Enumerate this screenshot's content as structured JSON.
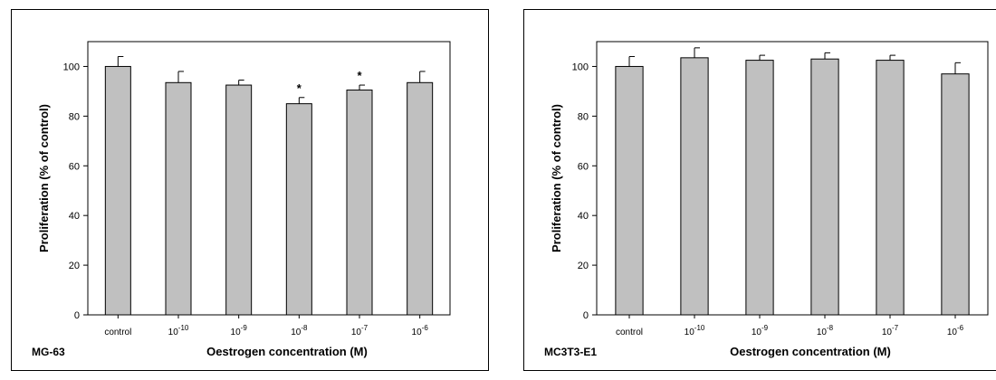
{
  "chart_data": [
    {
      "type": "bar",
      "panel_label": "MG-63",
      "xlabel": "Oestrogen concentration (M)",
      "ylabel": "Proliferation (% of control)",
      "categories": [
        {
          "base": "control",
          "exp": ""
        },
        {
          "base": "10",
          "exp": "-10"
        },
        {
          "base": "10",
          "exp": "-9"
        },
        {
          "base": "10",
          "exp": "-8"
        },
        {
          "base": "10",
          "exp": "-7"
        },
        {
          "base": "10",
          "exp": "-6"
        }
      ],
      "values": [
        100,
        93.5,
        92.5,
        85,
        90.5,
        93.5
      ],
      "errors": [
        4,
        4.5,
        2,
        2.5,
        2,
        4.5
      ],
      "significance": [
        "",
        "",
        "",
        "*",
        "*",
        ""
      ],
      "ylim": [
        0,
        110
      ],
      "yticks": [
        0,
        20,
        40,
        60,
        80,
        100
      ],
      "bar_color": "#c0c0c0"
    },
    {
      "type": "bar",
      "panel_label": "MC3T3-E1",
      "xlabel": "Oestrogen concentration (M)",
      "ylabel": "Proliferation (% of control)",
      "categories": [
        {
          "base": "control",
          "exp": ""
        },
        {
          "base": "10",
          "exp": "-10"
        },
        {
          "base": "10",
          "exp": "-9"
        },
        {
          "base": "10",
          "exp": "-8"
        },
        {
          "base": "10",
          "exp": "-7"
        },
        {
          "base": "10",
          "exp": "-6"
        }
      ],
      "values": [
        100,
        103.5,
        102.5,
        103,
        102.5,
        97
      ],
      "errors": [
        4,
        4,
        2,
        2.5,
        2,
        4.5
      ],
      "significance": [
        "",
        "",
        "",
        "",
        "",
        ""
      ],
      "ylim": [
        0,
        110
      ],
      "yticks": [
        0,
        20,
        40,
        60,
        80,
        100
      ],
      "bar_color": "#c0c0c0"
    }
  ]
}
